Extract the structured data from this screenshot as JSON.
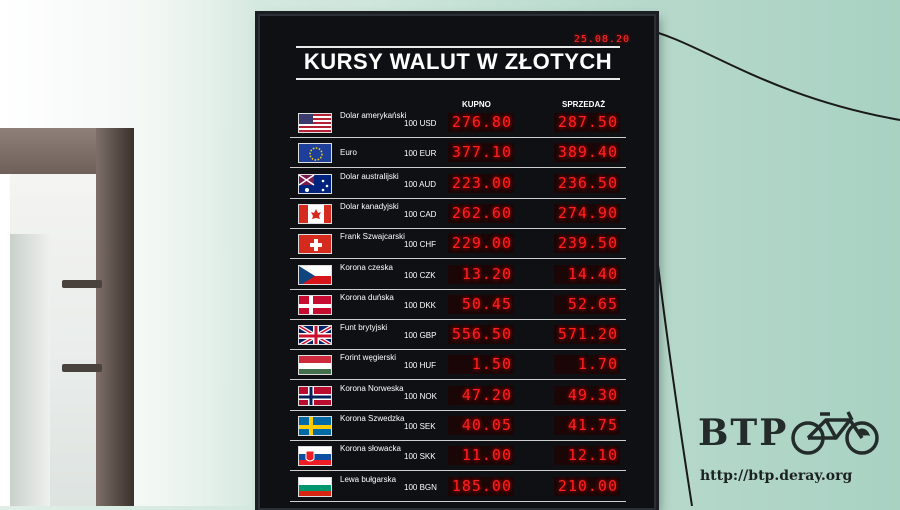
{
  "board": {
    "date": "25.08.20",
    "title": "KURSY WALUT W ZŁOTYCH",
    "col_buy": "KUPNO",
    "col_sell": "SPRZEDAŻ",
    "rows": [
      {
        "name": "Dolar amerykański",
        "unit": "100 USD",
        "buy": "276.80",
        "sell": "287.50",
        "flag": "us-flag-icon"
      },
      {
        "name": "Euro",
        "unit": "100 EUR",
        "buy": "377.10",
        "sell": "389.40",
        "flag": "eu-flag-icon"
      },
      {
        "name": "Dolar australijski",
        "unit": "100 AUD",
        "buy": "223.00",
        "sell": "236.50",
        "flag": "au-flag-icon"
      },
      {
        "name": "Dolar kanadyjski",
        "unit": "100 CAD",
        "buy": "262.60",
        "sell": "274.90",
        "flag": "ca-flag-icon"
      },
      {
        "name": "Frank Szwajcarski",
        "unit": "100 CHF",
        "buy": "229.00",
        "sell": "239.50",
        "flag": "ch-flag-icon"
      },
      {
        "name": "Korona czeska",
        "unit": "100 CZK",
        "buy": "13.20",
        "sell": "14.40",
        "flag": "cz-flag-icon"
      },
      {
        "name": "Korona duńska",
        "unit": "100 DKK",
        "buy": "50.45",
        "sell": "52.65",
        "flag": "dk-flag-icon"
      },
      {
        "name": "Funt brytyjski",
        "unit": "100 GBP",
        "buy": "556.50",
        "sell": "571.20",
        "flag": "gb-flag-icon"
      },
      {
        "name": "Forint węgierski",
        "unit": "100 HUF",
        "buy": "1.50",
        "sell": "1.70",
        "flag": "hu-flag-icon"
      },
      {
        "name": "Korona Norweska",
        "unit": "100 NOK",
        "buy": "47.20",
        "sell": "49.30",
        "flag": "no-flag-icon"
      },
      {
        "name": "Korona Szwedzka",
        "unit": "100 SEK",
        "buy": "40.05",
        "sell": "41.75",
        "flag": "se-flag-icon"
      },
      {
        "name": "Korona słowacka",
        "unit": "100 SKK",
        "buy": "11.00",
        "sell": "12.10",
        "flag": "sk-flag-icon"
      },
      {
        "name": "Lewa bułgarska",
        "unit": "100 BGN",
        "buy": "185.00",
        "sell": "210.00",
        "flag": "bg-flag-icon"
      }
    ]
  },
  "watermark": {
    "logo": "BTP",
    "url": "http://btp.deray.org",
    "icon": "bicycle-icon"
  },
  "colors": {
    "led_red": "#ff2020",
    "board_bg": "#0e1014",
    "wall": "#b7d9cc"
  }
}
